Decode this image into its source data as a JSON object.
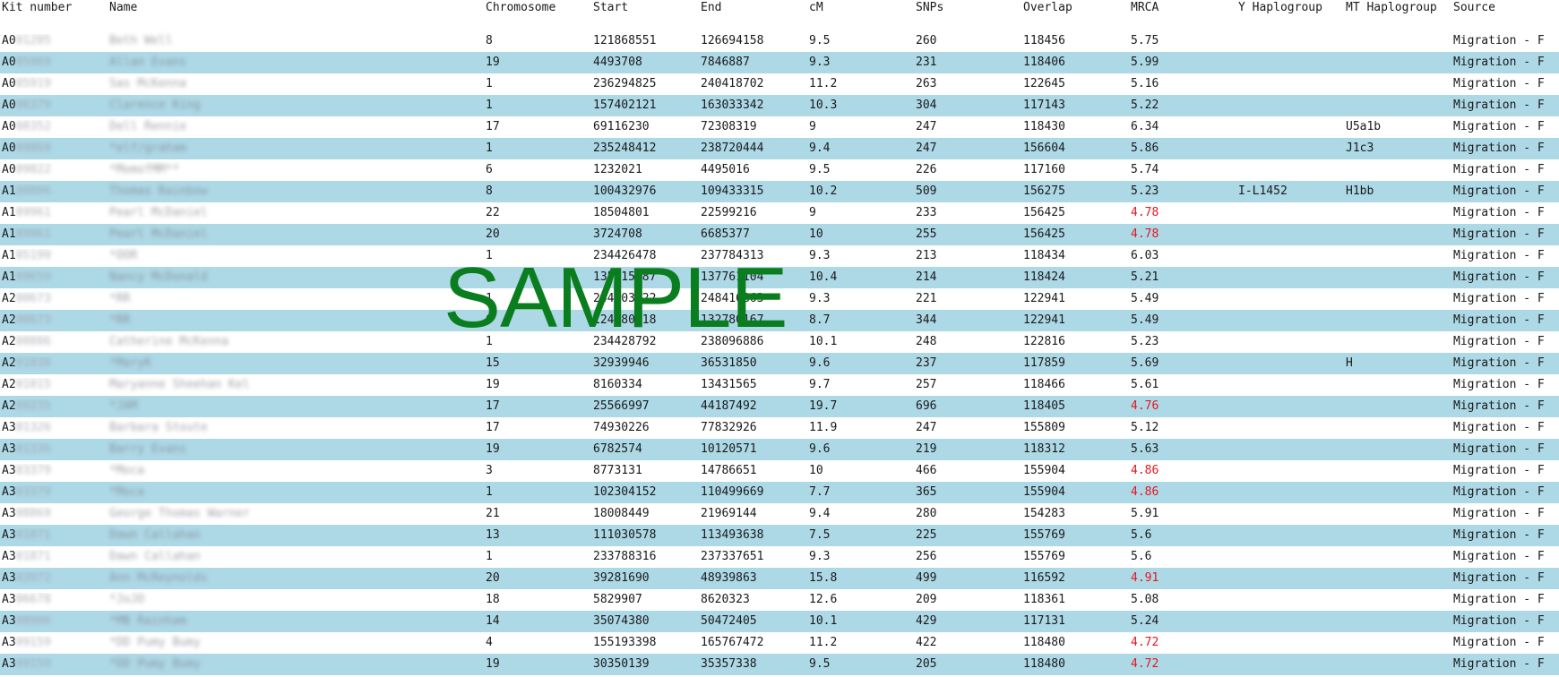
{
  "columns": {
    "kit_number": "Kit number",
    "name": "Name",
    "chromosome": "Chromosome",
    "start": "Start",
    "end": "End",
    "cm": "cM",
    "snps": "SNPs",
    "overlap": "Overlap",
    "mrca": "MRCA",
    "y_haplogroup": "Y Haplogroup",
    "mt_haplogroup": "MT Haplogroup",
    "source": "Source"
  },
  "watermark": "SAMPLE",
  "colors": {
    "row_alt_background": "#add8e6",
    "low_mrca_text": "#e8141e",
    "watermark": "#0a7d1e"
  },
  "rows": [
    {
      "kit_prefix": "A0",
      "kit_redacted": "01205",
      "name": "Beth Well",
      "chromosome": "8",
      "start": "121868551",
      "end": "126694158",
      "cm": "9.5",
      "snps": "260",
      "overlap": "118456",
      "mrca": "5.75",
      "mrca_low": false,
      "y_haplogroup": "",
      "mt_haplogroup": "",
      "source": "Migration - F"
    },
    {
      "kit_prefix": "A0",
      "kit_redacted": "05969",
      "name": "Allan Evans",
      "chromosome": "19",
      "start": "4493708",
      "end": "7846887",
      "cm": "9.3",
      "snps": "231",
      "overlap": "118406",
      "mrca": "5.99",
      "mrca_low": false,
      "y_haplogroup": "",
      "mt_haplogroup": "",
      "source": "Migration - F"
    },
    {
      "kit_prefix": "A0",
      "kit_redacted": "05919",
      "name": "Sas McKenna",
      "chromosome": "1",
      "start": "236294825",
      "end": "240418702",
      "cm": "11.2",
      "snps": "263",
      "overlap": "122645",
      "mrca": "5.16",
      "mrca_low": false,
      "y_haplogroup": "",
      "mt_haplogroup": "",
      "source": "Migration - F"
    },
    {
      "kit_prefix": "A0",
      "kit_redacted": "06379",
      "name": "Clarence King",
      "chromosome": "1",
      "start": "157402121",
      "end": "163033342",
      "cm": "10.3",
      "snps": "304",
      "overlap": "117143",
      "mrca": "5.22",
      "mrca_low": false,
      "y_haplogroup": "",
      "mt_haplogroup": "",
      "source": "Migration - F"
    },
    {
      "kit_prefix": "A0",
      "kit_redacted": "08352",
      "name": "Dell Rennie",
      "chromosome": "17",
      "start": "69116230",
      "end": "72308319",
      "cm": "9",
      "snps": "247",
      "overlap": "118430",
      "mrca": "6.34",
      "mrca_low": false,
      "y_haplogroup": "",
      "mt_haplogroup": "U5a1b",
      "source": "Migration - F"
    },
    {
      "kit_prefix": "A0",
      "kit_redacted": "09868",
      "name": "*elf/graham",
      "chromosome": "1",
      "start": "235248412",
      "end": "238720444",
      "cm": "9.4",
      "snps": "247",
      "overlap": "156604",
      "mrca": "5.86",
      "mrca_low": false,
      "y_haplogroup": "",
      "mt_haplogroup": "J1c3",
      "source": "Migration - F"
    },
    {
      "kit_prefix": "A0",
      "kit_redacted": "09822",
      "name": "*MomofMM**",
      "chromosome": "6",
      "start": "1232021",
      "end": "4495016",
      "cm": "9.5",
      "snps": "226",
      "overlap": "117160",
      "mrca": "5.74",
      "mrca_low": false,
      "y_haplogroup": "",
      "mt_haplogroup": "",
      "source": "Migration - F"
    },
    {
      "kit_prefix": "A1",
      "kit_redacted": "00806",
      "name": "Thomas Rainbow",
      "chromosome": "8",
      "start": "100432976",
      "end": "109433315",
      "cm": "10.2",
      "snps": "509",
      "overlap": "156275",
      "mrca": "5.23",
      "mrca_low": false,
      "y_haplogroup": "I-L1452",
      "mt_haplogroup": "H1bb",
      "source": "Migration - F"
    },
    {
      "kit_prefix": "A1",
      "kit_redacted": "09961",
      "name": "Pearl McDaniel",
      "chromosome": "22",
      "start": "18504801",
      "end": "22599216",
      "cm": "9",
      "snps": "233",
      "overlap": "156425",
      "mrca": "4.78",
      "mrca_low": true,
      "y_haplogroup": "",
      "mt_haplogroup": "",
      "source": "Migration - F"
    },
    {
      "kit_prefix": "A1",
      "kit_redacted": "09961",
      "name": "Pearl McDaniel",
      "chromosome": "20",
      "start": "3724708",
      "end": "6685377",
      "cm": "10",
      "snps": "255",
      "overlap": "156425",
      "mrca": "4.78",
      "mrca_low": true,
      "y_haplogroup": "",
      "mt_haplogroup": "",
      "source": "Migration - F"
    },
    {
      "kit_prefix": "A1",
      "kit_redacted": "05199",
      "name": "*OOR",
      "chromosome": "1",
      "start": "234426478",
      "end": "237784313",
      "cm": "9.3",
      "snps": "213",
      "overlap": "118434",
      "mrca": "6.03",
      "mrca_low": false,
      "y_haplogroup": "",
      "mt_haplogroup": "",
      "source": "Migration - F"
    },
    {
      "kit_prefix": "A1",
      "kit_redacted": "09659",
      "name": "Nancy McDonald",
      "chromosome": "9",
      "start": "135015987",
      "end": "137761104",
      "cm": "10.4",
      "snps": "214",
      "overlap": "118424",
      "mrca": "5.21",
      "mrca_low": false,
      "y_haplogroup": "",
      "mt_haplogroup": "",
      "source": "Migration - F"
    },
    {
      "kit_prefix": "A2",
      "kit_redacted": "00673",
      "name": "*RR",
      "chromosome": "1",
      "start": "244403122",
      "end": "248416863",
      "cm": "9.3",
      "snps": "221",
      "overlap": "122941",
      "mrca": "5.49",
      "mrca_low": false,
      "y_haplogroup": "",
      "mt_haplogroup": "",
      "source": "Migration - F"
    },
    {
      "kit_prefix": "A2",
      "kit_redacted": "00673",
      "name": "*RR",
      "chromosome": "6",
      "start": "124480118",
      "end": "132780167",
      "cm": "8.7",
      "snps": "344",
      "overlap": "122941",
      "mrca": "5.49",
      "mrca_low": false,
      "y_haplogroup": "",
      "mt_haplogroup": "",
      "source": "Migration - F"
    },
    {
      "kit_prefix": "A2",
      "kit_redacted": "08886",
      "name": "Catherine McKenna",
      "chromosome": "1",
      "start": "234428792",
      "end": "238096886",
      "cm": "10.1",
      "snps": "248",
      "overlap": "122816",
      "mrca": "5.23",
      "mrca_low": false,
      "y_haplogroup": "",
      "mt_haplogroup": "",
      "source": "Migration - F"
    },
    {
      "kit_prefix": "A2",
      "kit_redacted": "01838",
      "name": "*MaryK",
      "chromosome": "15",
      "start": "32939946",
      "end": "36531850",
      "cm": "9.6",
      "snps": "237",
      "overlap": "117859",
      "mrca": "5.69",
      "mrca_low": false,
      "y_haplogroup": "",
      "mt_haplogroup": "H",
      "source": "Migration - F"
    },
    {
      "kit_prefix": "A2",
      "kit_redacted": "01815",
      "name": "Maryanne Sheehan Kel",
      "chromosome": "19",
      "start": "8160334",
      "end": "13431565",
      "cm": "9.7",
      "snps": "257",
      "overlap": "118466",
      "mrca": "5.61",
      "mrca_low": false,
      "y_haplogroup": "",
      "mt_haplogroup": "",
      "source": "Migration - F"
    },
    {
      "kit_prefix": "A2",
      "kit_redacted": "09235",
      "name": "*JAM",
      "chromosome": "17",
      "start": "25566997",
      "end": "44187492",
      "cm": "19.7",
      "snps": "696",
      "overlap": "118405",
      "mrca": "4.76",
      "mrca_low": true,
      "y_haplogroup": "",
      "mt_haplogroup": "",
      "source": "Migration - F"
    },
    {
      "kit_prefix": "A3",
      "kit_redacted": "01326",
      "name": "Barbara Stoute",
      "chromosome": "17",
      "start": "74930226",
      "end": "77832926",
      "cm": "11.9",
      "snps": "247",
      "overlap": "155809",
      "mrca": "5.12",
      "mrca_low": false,
      "y_haplogroup": "",
      "mt_haplogroup": "",
      "source": "Migration - F"
    },
    {
      "kit_prefix": "A3",
      "kit_redacted": "01336",
      "name": "Barry Evans",
      "chromosome": "19",
      "start": "6782574",
      "end": "10120571",
      "cm": "9.6",
      "snps": "219",
      "overlap": "118312",
      "mrca": "5.63",
      "mrca_low": false,
      "y_haplogroup": "",
      "mt_haplogroup": "",
      "source": "Migration - F"
    },
    {
      "kit_prefix": "A3",
      "kit_redacted": "03379",
      "name": "*Moca",
      "chromosome": "3",
      "start": "8773131",
      "end": "14786651",
      "cm": "10",
      "snps": "466",
      "overlap": "155904",
      "mrca": "4.86",
      "mrca_low": true,
      "y_haplogroup": "",
      "mt_haplogroup": "",
      "source": "Migration - F"
    },
    {
      "kit_prefix": "A3",
      "kit_redacted": "03379",
      "name": "*Moca",
      "chromosome": "1",
      "start": "102304152",
      "end": "110499669",
      "cm": "7.7",
      "snps": "365",
      "overlap": "155904",
      "mrca": "4.86",
      "mrca_low": true,
      "y_haplogroup": "",
      "mt_haplogroup": "",
      "source": "Migration - F"
    },
    {
      "kit_prefix": "A3",
      "kit_redacted": "08869",
      "name": "George Thomas Warner",
      "chromosome": "21",
      "start": "18008449",
      "end": "21969144",
      "cm": "9.4",
      "snps": "280",
      "overlap": "154283",
      "mrca": "5.91",
      "mrca_low": false,
      "y_haplogroup": "",
      "mt_haplogroup": "",
      "source": "Migration - F"
    },
    {
      "kit_prefix": "A3",
      "kit_redacted": "01871",
      "name": "Dawn Callahan",
      "chromosome": "13",
      "start": "111030578",
      "end": "113493638",
      "cm": "7.5",
      "snps": "225",
      "overlap": "155769",
      "mrca": "5.6",
      "mrca_low": false,
      "y_haplogroup": "",
      "mt_haplogroup": "",
      "source": "Migration - F"
    },
    {
      "kit_prefix": "A3",
      "kit_redacted": "01871",
      "name": "Dawn Callahan",
      "chromosome": "1",
      "start": "233788316",
      "end": "237337651",
      "cm": "9.3",
      "snps": "256",
      "overlap": "155769",
      "mrca": "5.6",
      "mrca_low": false,
      "y_haplogroup": "",
      "mt_haplogroup": "",
      "source": "Migration - F"
    },
    {
      "kit_prefix": "A3",
      "kit_redacted": "03972",
      "name": "Ann McReynolds",
      "chromosome": "20",
      "start": "39281690",
      "end": "48939863",
      "cm": "15.8",
      "snps": "499",
      "overlap": "116592",
      "mrca": "4.91",
      "mrca_low": true,
      "y_haplogroup": "",
      "mt_haplogroup": "",
      "source": "Migration - F"
    },
    {
      "kit_prefix": "A3",
      "kit_redacted": "06678",
      "name": "*JoJO",
      "chromosome": "18",
      "start": "5829907",
      "end": "8620323",
      "cm": "12.6",
      "snps": "209",
      "overlap": "118361",
      "mrca": "5.08",
      "mrca_low": false,
      "y_haplogroup": "",
      "mt_haplogroup": "",
      "source": "Migration - F"
    },
    {
      "kit_prefix": "A3",
      "kit_redacted": "08906",
      "name": "*MB Rainham",
      "chromosome": "14",
      "start": "35074380",
      "end": "50472405",
      "cm": "10.1",
      "snps": "429",
      "overlap": "117131",
      "mrca": "5.24",
      "mrca_low": false,
      "y_haplogroup": "",
      "mt_haplogroup": "",
      "source": "Migration - F"
    },
    {
      "kit_prefix": "A3",
      "kit_redacted": "09159",
      "name": "*DD Pumy Bumy",
      "chromosome": "4",
      "start": "155193398",
      "end": "165767472",
      "cm": "11.2",
      "snps": "422",
      "overlap": "118480",
      "mrca": "4.72",
      "mrca_low": true,
      "y_haplogroup": "",
      "mt_haplogroup": "",
      "source": "Migration - F"
    },
    {
      "kit_prefix": "A3",
      "kit_redacted": "09159",
      "name": "*DD Pumy Bumy",
      "chromosome": "19",
      "start": "30350139",
      "end": "35357338",
      "cm": "9.5",
      "snps": "205",
      "overlap": "118480",
      "mrca": "4.72",
      "mrca_low": true,
      "y_haplogroup": "",
      "mt_haplogroup": "",
      "source": "Migration - F"
    }
  ]
}
